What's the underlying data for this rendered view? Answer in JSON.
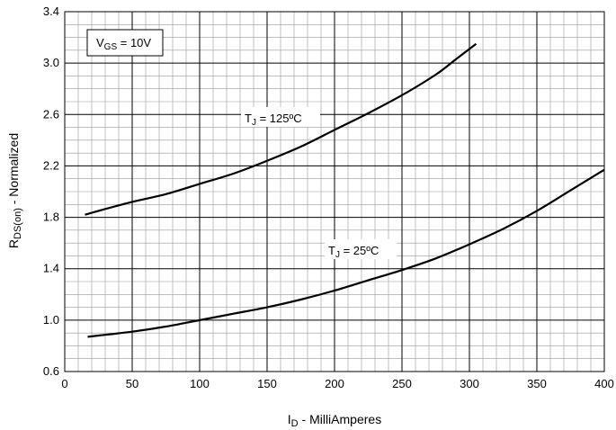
{
  "chart_data": {
    "type": "line",
    "title": "",
    "xlabel": {
      "main": "I",
      "sub": "D",
      "rest": " - MilliAmperes"
    },
    "ylabel": {
      "main": "R",
      "sub": "DS(on)",
      "rest": " - Normalized"
    },
    "xlim": [
      0,
      400
    ],
    "ylim": [
      0.6,
      3.4
    ],
    "x_ticks": [
      "0",
      "50",
      "100",
      "150",
      "200",
      "250",
      "300",
      "350",
      "400"
    ],
    "y_ticks": [
      "0.6",
      "1.0",
      "1.4",
      "1.8",
      "2.2",
      "2.6",
      "3.0",
      "3.4"
    ],
    "grid": {
      "major": true,
      "minor": true
    },
    "annotation_box": {
      "main": "V",
      "sub": "GS",
      "rest": " = 10V"
    },
    "series": [
      {
        "label": {
          "main": "T",
          "sub": "J",
          "rest": " = 125ºC"
        },
        "x": [
          15,
          25,
          50,
          75,
          100,
          125,
          150,
          175,
          200,
          225,
          250,
          275,
          290,
          305
        ],
        "y": [
          1.82,
          1.85,
          1.92,
          1.98,
          2.06,
          2.14,
          2.24,
          2.35,
          2.48,
          2.61,
          2.75,
          2.91,
          3.03,
          3.15
        ]
      },
      {
        "label": {
          "main": "T",
          "sub": "J",
          "rest": " = 25ºC"
        },
        "x": [
          17,
          25,
          50,
          75,
          100,
          125,
          150,
          175,
          200,
          225,
          250,
          275,
          300,
          325,
          350,
          375,
          400
        ],
        "y": [
          0.87,
          0.88,
          0.91,
          0.95,
          1.0,
          1.05,
          1.1,
          1.16,
          1.23,
          1.31,
          1.39,
          1.48,
          1.59,
          1.71,
          1.85,
          2.01,
          2.17
        ]
      }
    ],
    "colors": {
      "line": "#000000",
      "grid_major": "#000000",
      "grid_minor": "#999999",
      "background": "#ffffff"
    }
  }
}
